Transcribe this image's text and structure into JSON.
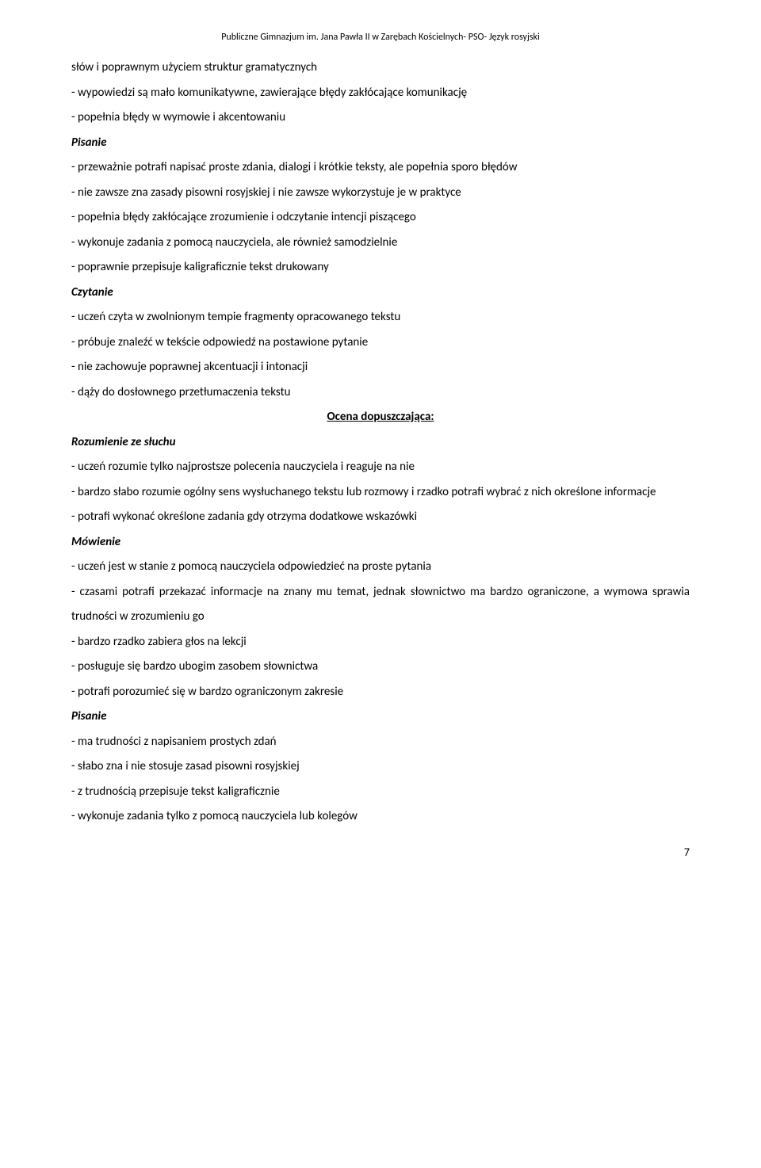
{
  "header": "Publiczne Gimnazjum im. Jana Pawła II w Zarębach Kościelnych- PSO- Język rosyjski",
  "lines": {
    "l1": "słów i poprawnym użyciem struktur gramatycznych",
    "l2": "- wypowiedzi są mało komunikatywne, zawierające błędy zakłócające komunikację",
    "l3": "- popełnia błędy w wymowie i akcentowaniu",
    "l4": "Pisanie",
    "l5": "- przeważnie potrafi napisać proste zdania, dialogi i krótkie teksty, ale popełnia sporo błędów",
    "l6": "- nie zawsze zna zasady pisowni rosyjskiej i nie zawsze wykorzystuje je w praktyce",
    "l7": "- popełnia błędy zakłócające zrozumienie i odczytanie intencji piszącego",
    "l8": "- wykonuje zadania z pomocą nauczyciela, ale również samodzielnie",
    "l9": "- poprawnie przepisuje kaligraficznie tekst drukowany",
    "l10": "Czytanie",
    "l11": "- uczeń czyta w zwolnionym tempie fragmenty opracowanego tekstu",
    "l12": "- próbuje znaleźć w tekście odpowiedź na postawione pytanie",
    "l13": "- nie zachowuje poprawnej akcentuacji i intonacji",
    "l14": "- dąży do dosłownego przetłumaczenia tekstu",
    "l15": "Ocena dopuszczająca:",
    "l16": "Rozumienie ze słuchu",
    "l17": "- uczeń rozumie tylko najprostsze polecenia nauczyciela i reaguje na nie",
    "l18": "- bardzo słabo rozumie ogólny sens wysłuchanego tekstu lub rozmowy i rzadko potrafi wybrać z nich określone informacje",
    "l19": "- potrafi wykonać określone zadania gdy otrzyma dodatkowe wskazówki",
    "l20": "Mówienie",
    "l21": "- uczeń jest w stanie z pomocą nauczyciela odpowiedzieć na proste pytania",
    "l22": "- czasami potrafi przekazać informacje na znany mu temat, jednak słownictwo ma bardzo ograniczone, a wymowa sprawia trudności w zrozumieniu go",
    "l23": "- bardzo rzadko zabiera głos na lekcji",
    "l24": "- posługuje się bardzo ubogim zasobem słownictwa",
    "l25": "- potrafi porozumieć się w bardzo ograniczonym zakresie",
    "l26": "Pisanie",
    "l27": "- ma trudności z napisaniem prostych zdań",
    "l28": "- słabo zna i nie stosuje zasad pisowni rosyjskiej",
    "l29": "- z trudnością przepisuje tekst kaligraficznie",
    "l30": "- wykonuje zadania tylko z pomocą nauczyciela lub kolegów"
  },
  "pageNumber": "7",
  "style": {
    "bodyFontSize": 15,
    "headerFontSize": 12,
    "lineHeight": 2.1,
    "textColor": "#000000",
    "backgroundColor": "#ffffff",
    "fontFamily": "Calibri, Arial, sans-serif"
  }
}
